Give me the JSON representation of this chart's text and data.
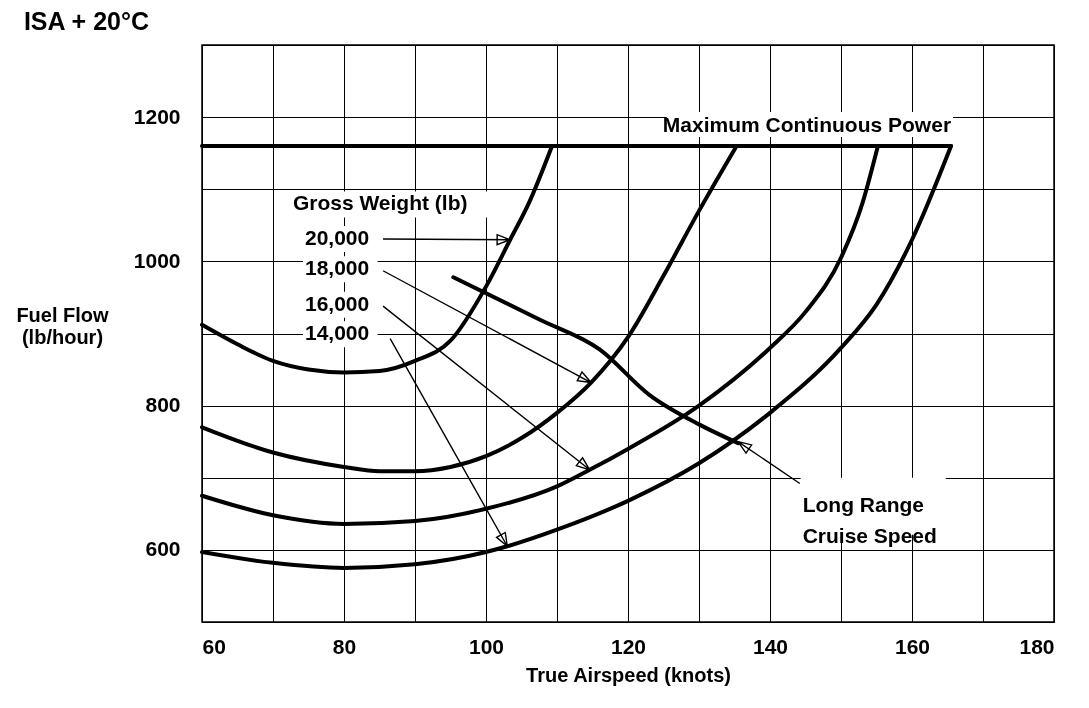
{
  "chart_data": {
    "type": "line",
    "title": "ISA + 20°C",
    "xlabel": "True Airspeed (knots)",
    "ylabel": "Fuel Flow\n(lb/hour)",
    "xlim": [
      60,
      180
    ],
    "ylim": [
      500,
      1300
    ],
    "xticks": [
      60,
      {
        "value": 70,
        "label": null
      },
      80,
      {
        "value": 90,
        "label": null
      },
      100,
      {
        "value": 110,
        "label": null
      },
      120,
      {
        "value": 130,
        "label": null
      },
      140,
      {
        "value": 150,
        "label": null
      },
      160,
      {
        "value": 170,
        "label": null
      },
      180
    ],
    "yticks": [
      {
        "value": 500,
        "label": null
      },
      600,
      {
        "value": 700,
        "label": null
      },
      800,
      {
        "value": 900,
        "label": null
      },
      1000,
      {
        "value": 1100,
        "label": null
      },
      1200,
      {
        "value": 1300,
        "label": null
      }
    ],
    "grid": true,
    "series": [
      {
        "name": "Maximum Continuous Power",
        "color": "#000000",
        "x": [
          60,
          165.5
        ],
        "values": [
          1160,
          1160
        ]
      },
      {
        "color": "#000000",
        "x": [
          60,
          65,
          70,
          75,
          80,
          85,
          90,
          95,
          100,
          103.4,
          106,
          109.3
        ],
        "values": [
          912,
          885,
          862,
          850,
          846,
          848,
          862,
          890,
          965,
          1030,
          1080,
          1160
        ]
      },
      {
        "color": "#000000",
        "x": [
          60,
          70,
          80,
          85,
          90,
          95,
          100,
          105,
          110,
          114.8,
          120,
          125,
          130,
          135.3
        ],
        "values": [
          770,
          735,
          715,
          709,
          709,
          715,
          730,
          755,
          790,
          832,
          895,
          980,
          1070,
          1160
        ]
      },
      {
        "color": "#000000",
        "x": [
          60,
          70,
          80,
          90,
          100,
          110,
          114.6,
          120,
          130,
          140,
          145,
          150,
          153,
          155.2
        ],
        "values": [
          675,
          648,
          636,
          640,
          657,
          688,
          711,
          740,
          800,
          880,
          930,
          1005,
          1080,
          1160
        ]
      },
      {
        "color": "#000000",
        "x": [
          60,
          70,
          80,
          90,
          100,
          103,
          110,
          120,
          130,
          140,
          150,
          155,
          160,
          165.5
        ],
        "values": [
          597,
          582,
          575,
          580,
          597,
          605,
          628,
          668,
          720,
          790,
          880,
          940,
          1030,
          1160
        ]
      },
      {
        "color": "#000000",
        "x": [
          95.4,
          107.6,
          116,
          123,
          130,
          135.5
        ],
        "values": [
          978,
          919,
          878,
          815,
          774,
          748
        ]
      }
    ],
    "annotations": [
      "Gross Weight (lb)",
      {
        "text": "20,000",
        "x": 103.4,
        "y": 1030
      },
      {
        "text": "18,000",
        "x": 114.8,
        "y": 832
      },
      {
        "text": "16,000",
        "x": 114.6,
        "y": 711
      },
      {
        "text": "14,000",
        "x": 103,
        "y": 605
      },
      {
        "text": "Long Range\nCruise Speed",
        "x": 135.5,
        "y": 750
      }
    ]
  }
}
